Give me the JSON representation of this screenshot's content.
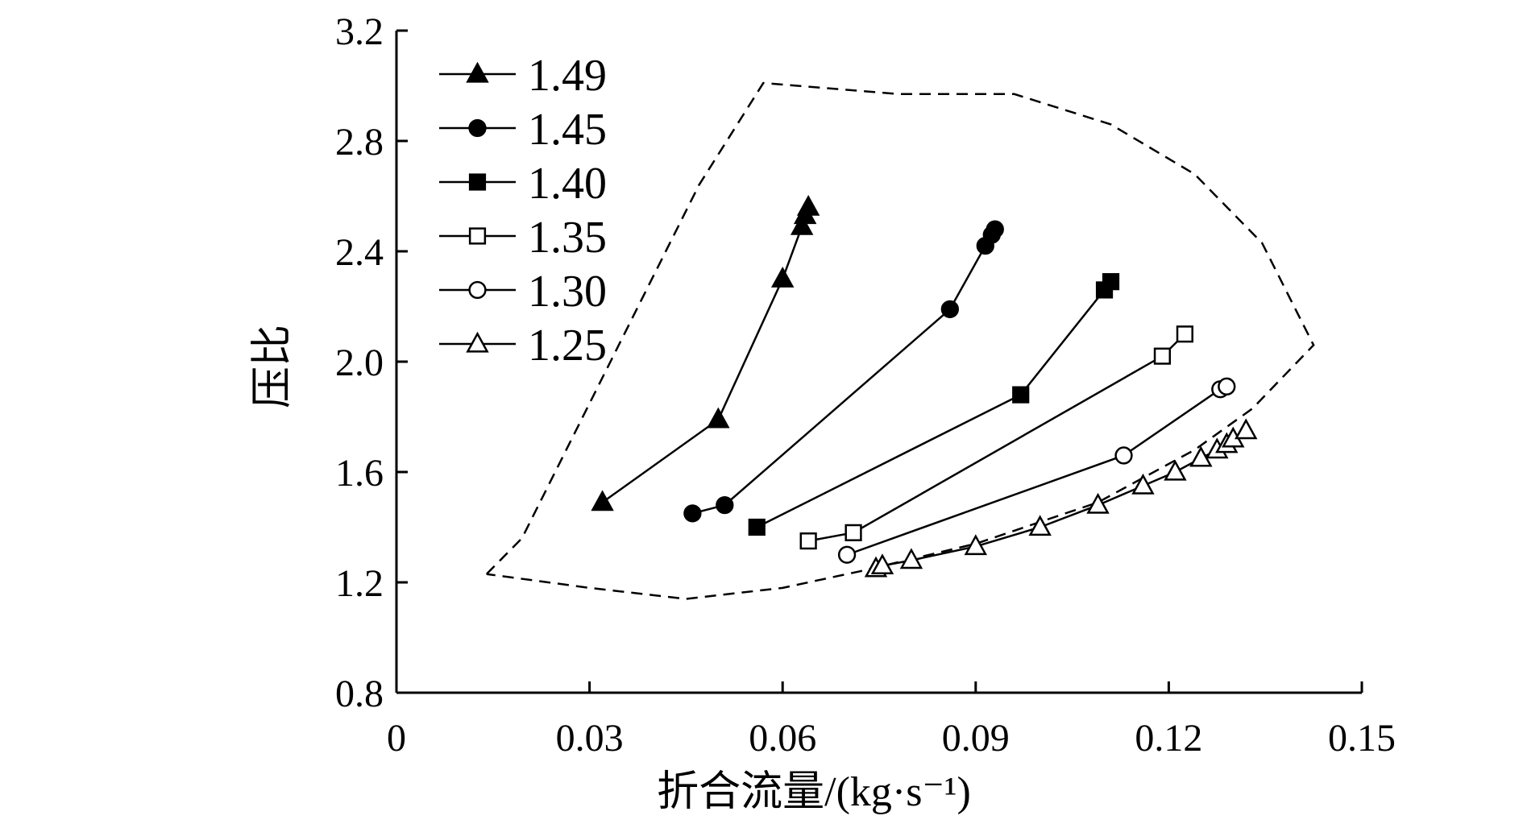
{
  "chart_data": {
    "type": "line",
    "title": "",
    "xlabel": "折合流量/(kg·s⁻¹)",
    "ylabel": "压比",
    "xlim": [
      0,
      0.15
    ],
    "ylim": [
      0.8,
      3.2
    ],
    "x_ticks": [
      0,
      0.03,
      0.06,
      0.09,
      0.12,
      0.15
    ],
    "x_tick_labels": [
      "0",
      "0.03",
      "0.06",
      "0.09",
      "0.12",
      "0.15"
    ],
    "y_ticks": [
      0.8,
      1.2,
      1.6,
      2.0,
      2.4,
      2.8,
      3.2
    ],
    "y_tick_labels": [
      "0.8",
      "1.2",
      "1.6",
      "2.0",
      "2.4",
      "2.8",
      "3.2"
    ],
    "grid": false,
    "legend": "top-left",
    "series": [
      {
        "name": "1.49",
        "marker": "triangle-filled",
        "points": [
          [
            0.032,
            1.49
          ],
          [
            0.05,
            1.79
          ],
          [
            0.06,
            2.3
          ],
          [
            0.063,
            2.49
          ],
          [
            0.0635,
            2.53
          ],
          [
            0.064,
            2.56
          ]
        ]
      },
      {
        "name": "1.45",
        "marker": "circle-filled",
        "points": [
          [
            0.046,
            1.45
          ],
          [
            0.051,
            1.48
          ],
          [
            0.086,
            2.19
          ],
          [
            0.0915,
            2.42
          ],
          [
            0.0925,
            2.46
          ],
          [
            0.093,
            2.48
          ]
        ]
      },
      {
        "name": "1.40",
        "marker": "square-filled",
        "points": [
          [
            0.056,
            1.4
          ],
          [
            0.097,
            1.88
          ],
          [
            0.11,
            2.26
          ],
          [
            0.111,
            2.29
          ]
        ]
      },
      {
        "name": "1.35",
        "marker": "square-open",
        "points": [
          [
            0.064,
            1.35
          ],
          [
            0.071,
            1.38
          ],
          [
            0.119,
            2.02
          ],
          [
            0.1225,
            2.1
          ]
        ]
      },
      {
        "name": "1.30",
        "marker": "circle-open",
        "points": [
          [
            0.07,
            1.3
          ],
          [
            0.113,
            1.66
          ],
          [
            0.128,
            1.9
          ],
          [
            0.129,
            1.91
          ]
        ]
      },
      {
        "name": "1.25",
        "marker": "triangle-open",
        "points": [
          [
            0.0745,
            1.25
          ],
          [
            0.0755,
            1.26
          ],
          [
            0.08,
            1.28
          ],
          [
            0.09,
            1.33
          ],
          [
            0.1,
            1.4
          ],
          [
            0.109,
            1.48
          ],
          [
            0.116,
            1.55
          ],
          [
            0.121,
            1.6
          ],
          [
            0.125,
            1.65
          ],
          [
            0.1275,
            1.68
          ],
          [
            0.129,
            1.7
          ],
          [
            0.13,
            1.72
          ],
          [
            0.132,
            1.75
          ]
        ]
      }
    ],
    "boundary": {
      "name": "operating-envelope",
      "style": "dashed",
      "points": [
        [
          0.014,
          1.23
        ],
        [
          0.0195,
          1.36
        ],
        [
          0.047,
          2.64
        ],
        [
          0.057,
          3.01
        ],
        [
          0.078,
          2.97
        ],
        [
          0.096,
          2.97
        ],
        [
          0.111,
          2.86
        ],
        [
          0.124,
          2.68
        ],
        [
          0.1345,
          2.43
        ],
        [
          0.1425,
          2.06
        ],
        [
          0.133,
          1.83
        ],
        [
          0.124,
          1.68
        ],
        [
          0.109,
          1.49
        ],
        [
          0.09,
          1.34
        ],
        [
          0.072,
          1.24
        ],
        [
          0.06,
          1.18
        ],
        [
          0.045,
          1.14
        ],
        [
          0.03,
          1.18
        ],
        [
          0.014,
          1.23
        ]
      ]
    }
  }
}
